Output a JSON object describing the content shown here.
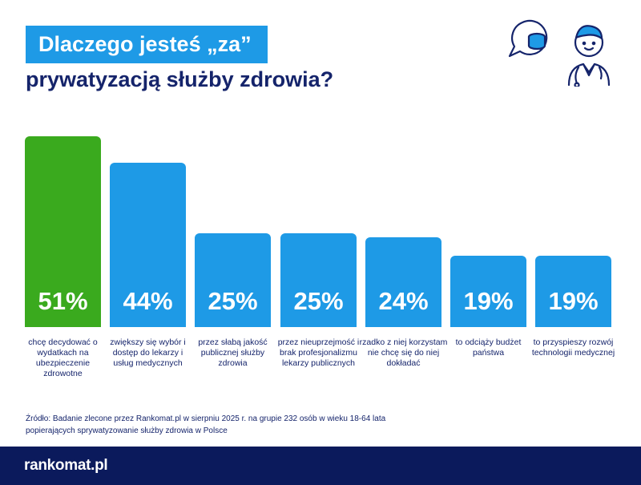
{
  "header": {
    "title_line1": "Dlaczego jesteś „za”",
    "title_line2": "prywatyzacją służby zdrowia?"
  },
  "illustration": {
    "icon": "doctor-with-coins-icon"
  },
  "chart_data": {
    "type": "bar",
    "title": "Dlaczego jesteś „za” prywatyzacją służby zdrowia?",
    "categories": [
      "chcę decydować o wydatkach na ubezpieczenie zdrowotne",
      "zwiększy się wybór i dostęp do lekarzy i usług medycznych",
      "przez słabą jakość publicznej służby zdrowia",
      "przez nieuprzejmość i brak profesjonalizmu lekarzy publicznych",
      "rzadko z niej korzystam nie chcę się do niej dokładać",
      "to odciąży budżet państwa",
      "to przyspieszy rozwój technologii medycznej"
    ],
    "values": [
      51,
      44,
      25,
      25,
      24,
      19,
      19
    ],
    "value_labels": [
      "51%",
      "44%",
      "25%",
      "25%",
      "24%",
      "19%",
      "19%"
    ],
    "unit": "%",
    "colors": [
      "#3aaa1e",
      "#1e9ae6",
      "#1e9ae6",
      "#1e9ae6",
      "#1e9ae6",
      "#1e9ae6",
      "#1e9ae6"
    ],
    "ylim": [
      0,
      51
    ],
    "grid": false
  },
  "source_line1": "Źródło: Badanie zlecone przez Rankomat.pl w sierpniu 2025 r. na grupie 232 osób w wieku 18-64 lata",
  "source_line2": "popierających sprywatyzowanie służby zdrowia w Polsce",
  "footer": {
    "logo": "rankomat.pl"
  }
}
